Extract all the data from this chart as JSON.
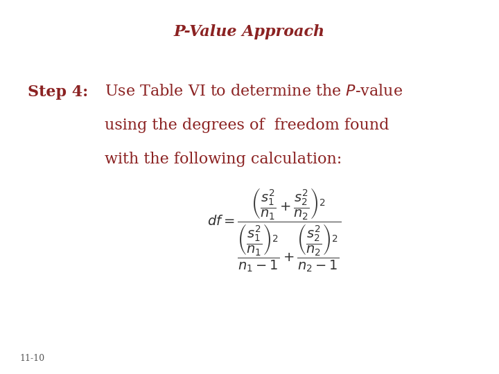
{
  "title": "P-Value Approach",
  "title_color": "#8B2222",
  "title_fontsize": 16,
  "step_label": "Step 4:",
  "step_color": "#8B2222",
  "step_fontsize": 16,
  "body_text_line1": "Use Table VI to determine the $P$-value",
  "body_text_line2": "using the degrees of  freedom found",
  "body_text_line3": "with the following calculation:",
  "body_color": "#8B2222",
  "body_fontsize": 16,
  "formula": "$df = \\dfrac{\\left(\\dfrac{s_1^2}{n_1} + \\dfrac{s_2^2}{n_2}\\right)^2}{\\dfrac{\\left(\\dfrac{s_1^2}{n_1}\\right)^2}{n_1 - 1} + \\dfrac{\\left(\\dfrac{s_2^2}{n_2}\\right)^2}{n_2 - 1}}$",
  "formula_color": "#333333",
  "formula_fontsize": 14,
  "footnote": "11-10",
  "footnote_fontsize": 9,
  "footnote_color": "#555555",
  "background_color": "#ffffff"
}
